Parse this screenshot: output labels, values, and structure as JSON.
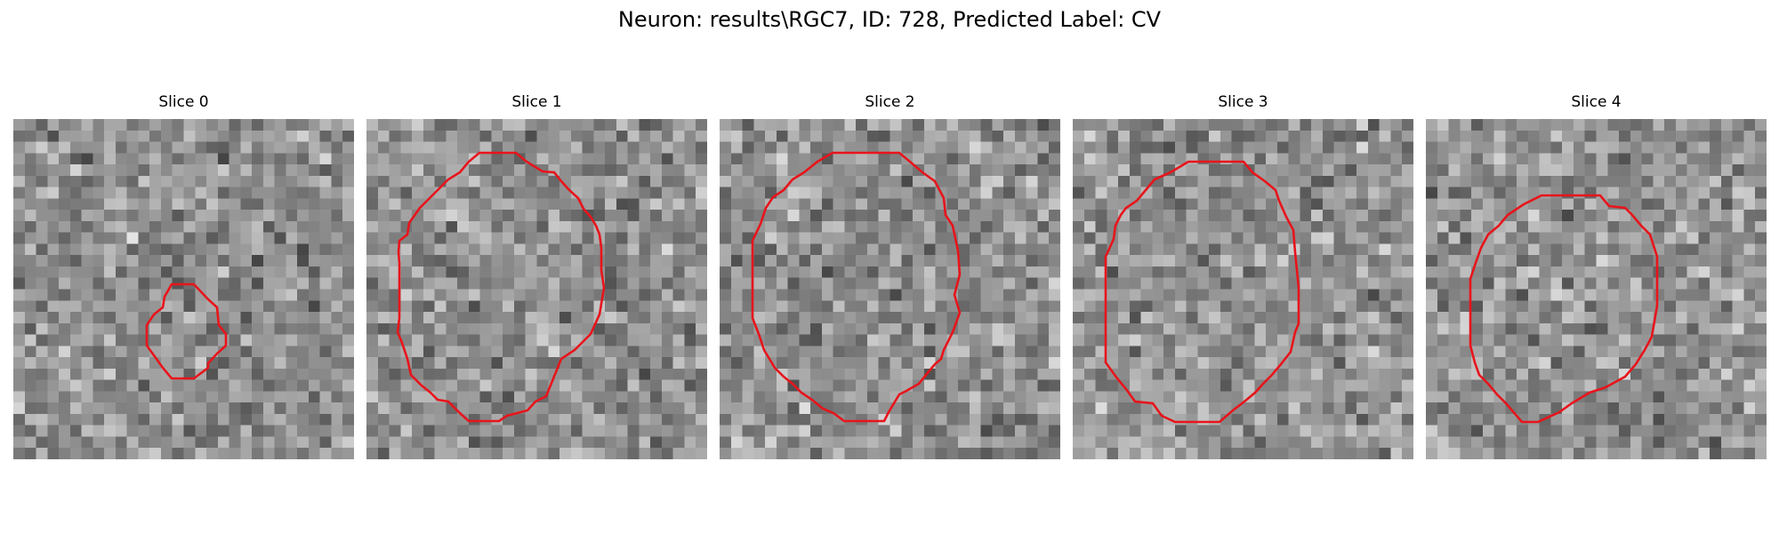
{
  "figure": {
    "title": "Neuron: results\\RGC7, ID: 728, Predicted Label: CV"
  },
  "slices": [
    {
      "label": "Slice 0"
    },
    {
      "label": "Slice 1"
    },
    {
      "label": "Slice 2"
    },
    {
      "label": "Slice 3"
    },
    {
      "label": "Slice 4"
    }
  ],
  "colors": {
    "contour": "#e8141b",
    "background": "#ffffff",
    "text": "#000000"
  },
  "image": {
    "colormap": "grayscale",
    "grid_cells": 30
  }
}
